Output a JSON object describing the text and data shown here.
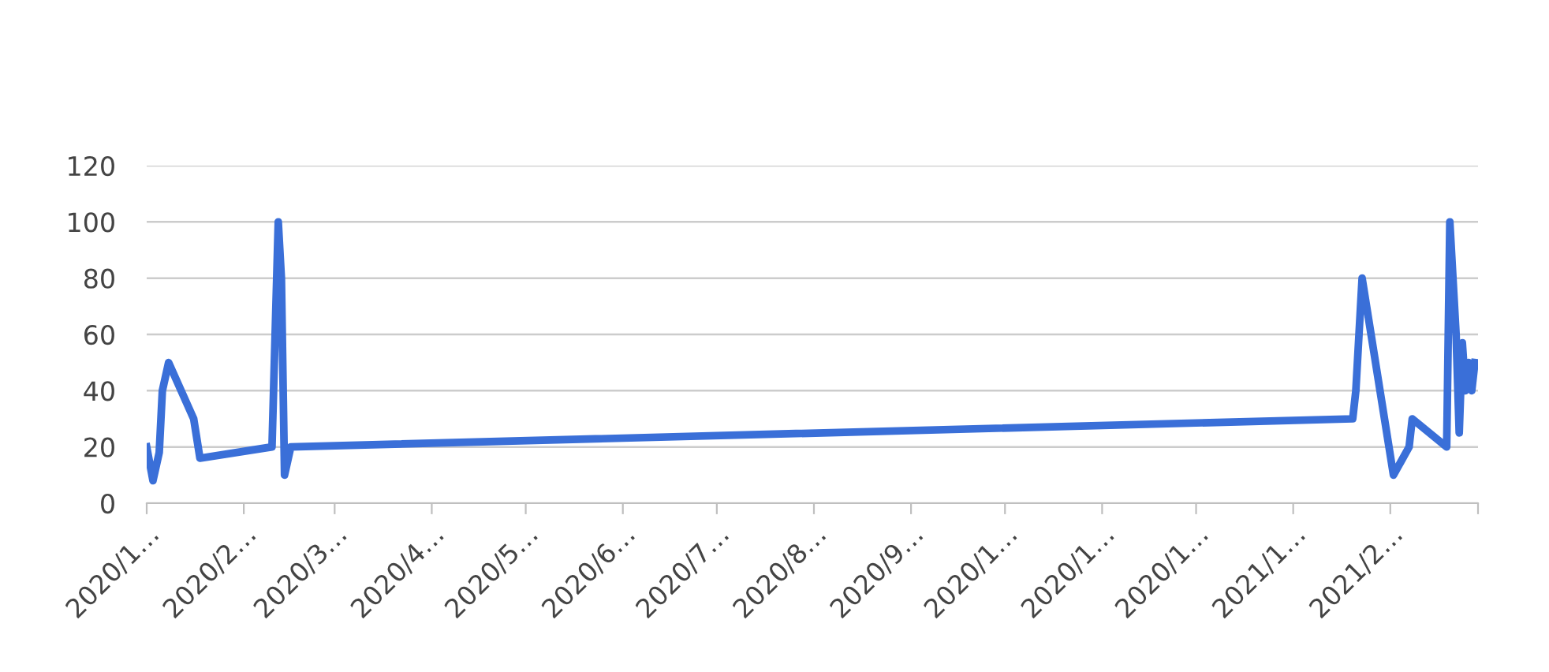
{
  "chart_data": {
    "type": "line",
    "x": [
      "2020-01-01",
      "2020-01-03",
      "2020-01-05",
      "2020-01-06",
      "2020-01-08",
      "2020-01-16",
      "2020-01-18",
      "2020-02-10",
      "2020-02-12",
      "2020-02-13",
      "2020-02-14",
      "2020-02-16",
      "2021-01-20",
      "2021-01-21",
      "2021-01-23",
      "2021-02-02",
      "2021-02-07",
      "2021-02-08",
      "2021-02-19",
      "2021-02-20",
      "2021-02-22",
      "2021-02-23",
      "2021-02-24",
      "2021-02-25",
      "2021-02-26",
      "2021-02-27",
      "2021-02-28"
    ],
    "series": [
      {
        "color": "#3a6fd8",
        "values": [
          20,
          8,
          18,
          40,
          50,
          30,
          16,
          20,
          100,
          80,
          10,
          20,
          30,
          40,
          80,
          10,
          20,
          30,
          20,
          100,
          60,
          25,
          57,
          40,
          50,
          40,
          50
        ]
      }
    ],
    "xlim": [
      "2020-01-01",
      "2021-03-01"
    ],
    "xticks": [
      {
        "value": "2020-01-01",
        "label": "2020/1…"
      },
      {
        "value": "2020-02-01",
        "label": "2020/2…"
      },
      {
        "value": "2020-03-01",
        "label": "2020/3…"
      },
      {
        "value": "2020-04-01",
        "label": "2020/4…"
      },
      {
        "value": "2020-05-01",
        "label": "2020/5…"
      },
      {
        "value": "2020-06-01",
        "label": "2020/6…"
      },
      {
        "value": "2020-07-01",
        "label": "2020/7…"
      },
      {
        "value": "2020-08-01",
        "label": "2020/8…"
      },
      {
        "value": "2020-09-01",
        "label": "2020/9…"
      },
      {
        "value": "2020-10-01",
        "label": "2020/1…"
      },
      {
        "value": "2020-11-01",
        "label": "2020/1…"
      },
      {
        "value": "2020-12-01",
        "label": "2020/1…"
      },
      {
        "value": "2021-01-01",
        "label": "2021/1…"
      },
      {
        "value": "2021-02-01",
        "label": "2021/2…"
      },
      {
        "value": "2021-03-01",
        "label": null
      }
    ],
    "ylim": [
      0,
      120
    ],
    "yticks": [
      0,
      20,
      40,
      60,
      80,
      100,
      120
    ],
    "grid": "y",
    "line_style": "solid",
    "marker": "none"
  }
}
